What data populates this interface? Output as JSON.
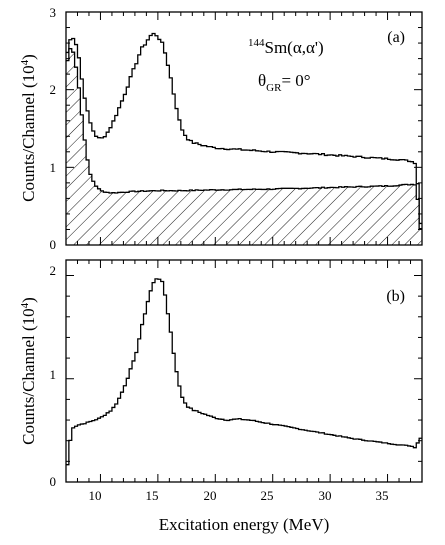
{
  "chart_data": [
    {
      "panel": "(a)",
      "type": "line",
      "style": "histogram-step",
      "ylabel_main": "Counts/Channel (10",
      "ylabel_exp": "4",
      "ylabel_close": ")",
      "xlim": [
        7,
        38
      ],
      "ylim": [
        0,
        3
      ],
      "yticks": [
        0,
        1,
        2,
        3
      ],
      "annotation": {
        "mass": "144",
        "symbol": "Sm(α,α')",
        "theta": "θ",
        "theta_sub": "GR",
        "theta_val": "= 0°"
      },
      "series": [
        {
          "role": "total",
          "fill": "none",
          "x": [
            7.0,
            7.5,
            8.0,
            8.5,
            9.0,
            9.5,
            10.0,
            10.5,
            11.0,
            11.5,
            12.0,
            12.5,
            13.0,
            13.5,
            14.0,
            14.5,
            15.0,
            15.5,
            16.0,
            16.5,
            17.0,
            17.5,
            18.0,
            19.0,
            20.0,
            22.0,
            25.0,
            28.0,
            31.0,
            34.0,
            36.0,
            37.0,
            37.5,
            38.0
          ],
          "y": [
            2.4,
            2.72,
            2.55,
            2.0,
            1.62,
            1.42,
            1.36,
            1.42,
            1.55,
            1.72,
            1.9,
            2.1,
            2.3,
            2.5,
            2.62,
            2.72,
            2.7,
            2.55,
            2.25,
            1.85,
            1.52,
            1.38,
            1.32,
            1.28,
            1.25,
            1.23,
            1.2,
            1.18,
            1.15,
            1.12,
            1.1,
            1.08,
            1.05,
            0.02
          ]
        },
        {
          "role": "background (hatched)",
          "fill": "hatched",
          "x": [
            7.0,
            7.5,
            8.0,
            8.5,
            9.0,
            9.5,
            10.0,
            10.5,
            11.0,
            12.0,
            13.0,
            15.0,
            17.0,
            20.0,
            25.0,
            30.0,
            35.0,
            37.0,
            37.5,
            38.0
          ],
          "y": [
            2.3,
            2.6,
            2.2,
            1.5,
            0.95,
            0.78,
            0.7,
            0.68,
            0.67,
            0.68,
            0.69,
            0.7,
            0.7,
            0.71,
            0.72,
            0.74,
            0.76,
            0.78,
            0.78,
            0.02
          ]
        }
      ]
    },
    {
      "panel": "(b)",
      "type": "line",
      "style": "histogram-step",
      "ylabel_main": "Counts/Channel (10",
      "ylabel_exp": "4",
      "ylabel_close": ")",
      "xlabel": "Excitation energy (MeV)",
      "xlim": [
        7,
        38
      ],
      "ylim": [
        0,
        2.15
      ],
      "yticks": [
        0,
        1,
        2
      ],
      "xticks": [
        10,
        15,
        20,
        25,
        30,
        35
      ],
      "series": [
        {
          "role": "subtracted",
          "fill": "none",
          "x": [
            7.0,
            7.5,
            8.0,
            9.0,
            10.0,
            11.0,
            11.5,
            12.0,
            12.5,
            13.0,
            13.5,
            14.0,
            14.5,
            15.0,
            15.5,
            16.0,
            16.5,
            17.0,
            17.5,
            18.0,
            19.0,
            20.0,
            21.0,
            22.0,
            23.0,
            24.0,
            26.0,
            28.0,
            30.0,
            32.0,
            34.0,
            36.0,
            37.0,
            37.5,
            37.8,
            38.0
          ],
          "y": [
            0.05,
            0.52,
            0.55,
            0.58,
            0.62,
            0.7,
            0.78,
            0.9,
            1.05,
            1.2,
            1.45,
            1.7,
            1.9,
            2.0,
            1.9,
            1.55,
            1.15,
            0.85,
            0.74,
            0.7,
            0.66,
            0.62,
            0.6,
            0.61,
            0.6,
            0.58,
            0.54,
            0.5,
            0.46,
            0.42,
            0.39,
            0.36,
            0.35,
            0.33,
            0.45,
            0.38
          ]
        }
      ]
    }
  ]
}
